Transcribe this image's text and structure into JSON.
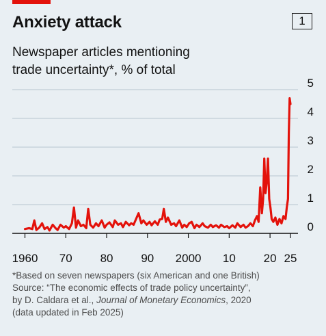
{
  "header": {
    "title": "Anxiety attack",
    "chart_number": "1",
    "subtitle_line1": "Newspaper articles mentioning",
    "subtitle_line2": "trade uncertainty*, % of total"
  },
  "footnotes": {
    "note": "*Based on seven newspapers (six American and one British)",
    "source_line1": "Source: “The economic effects of trade policy uncertainty”,",
    "source_line2_prefix": "by D. Caldara et al., ",
    "source_journal": "Journal of Monetary Economics",
    "source_line2_suffix": ", 2020",
    "source_line3": "(data updated in Feb 2025)"
  },
  "colors": {
    "background": "#e9eff3",
    "series": "#e3120b",
    "brand_tag": "#e3120b",
    "grid": "#b7c6cf",
    "baseline": "#121212"
  },
  "chart_data": {
    "type": "line",
    "title": "Anxiety attack",
    "subtitle": "Newspaper articles mentioning trade uncertainty*, % of total",
    "xlabel": "",
    "ylabel": "",
    "xlim": [
      1957,
      2027
    ],
    "ylim": [
      0,
      5
    ],
    "y_ticks": [
      0,
      1,
      2,
      3,
      4,
      5
    ],
    "y_axis_side": "right",
    "x_ticks": [
      {
        "value": 1960,
        "label": "1960"
      },
      {
        "value": 1970,
        "label": "70"
      },
      {
        "value": 1980,
        "label": "80"
      },
      {
        "value": 1990,
        "label": "90"
      },
      {
        "value": 2000,
        "label": "2000"
      },
      {
        "value": 2010,
        "label": "10"
      },
      {
        "value": 2020,
        "label": "20"
      },
      {
        "value": 2025,
        "label": "25"
      }
    ],
    "grid": true,
    "series": [
      {
        "name": "",
        "x": [
          1960.0,
          1961.0,
          1961.8,
          1962.3,
          1962.8,
          1963.5,
          1964.2,
          1964.8,
          1965.5,
          1966.0,
          1966.8,
          1967.5,
          1968.0,
          1968.7,
          1969.5,
          1970.0,
          1970.8,
          1971.5,
          1972.0,
          1972.5,
          1973.0,
          1973.7,
          1974.3,
          1975.0,
          1975.5,
          1976.0,
          1976.7,
          1977.4,
          1978.0,
          1978.8,
          1979.5,
          1980.0,
          1980.7,
          1981.5,
          1982.0,
          1982.8,
          1983.5,
          1984.0,
          1984.7,
          1985.5,
          1986.0,
          1986.6,
          1987.2,
          1987.8,
          1988.5,
          1989.0,
          1989.8,
          1990.5,
          1991.0,
          1991.8,
          1992.5,
          1993.0,
          1993.6,
          1994.0,
          1994.5,
          1995.0,
          1995.8,
          1996.5,
          1997.0,
          1997.8,
          1998.5,
          1999.0,
          1999.6,
          2000.2,
          2000.8,
          2001.5,
          2002.0,
          2002.7,
          2003.5,
          2004.0,
          2004.8,
          2005.5,
          2006.0,
          2006.8,
          2007.5,
          2008.0,
          2008.8,
          2009.5,
          2010.0,
          2010.8,
          2011.5,
          2012.0,
          2012.8,
          2013.5,
          2014.0,
          2014.6,
          2015.2,
          2015.8,
          2016.3,
          2016.8,
          2017.2,
          2017.6,
          2018.0,
          2018.3,
          2018.6,
          2018.9,
          2019.2,
          2019.5,
          2019.8,
          2020.1,
          2020.4,
          2020.8,
          2021.3,
          2021.8,
          2022.3,
          2022.8,
          2023.3,
          2023.8,
          2024.1,
          2024.4,
          2024.6,
          2024.8,
          2025.0
        ],
        "values": [
          0.15,
          0.18,
          0.15,
          0.45,
          0.12,
          0.2,
          0.35,
          0.15,
          0.22,
          0.1,
          0.3,
          0.18,
          0.12,
          0.3,
          0.2,
          0.25,
          0.15,
          0.35,
          0.9,
          0.2,
          0.45,
          0.25,
          0.3,
          0.18,
          0.85,
          0.3,
          0.2,
          0.35,
          0.25,
          0.45,
          0.2,
          0.3,
          0.38,
          0.22,
          0.45,
          0.3,
          0.35,
          0.22,
          0.4,
          0.28,
          0.35,
          0.3,
          0.5,
          0.7,
          0.35,
          0.45,
          0.3,
          0.4,
          0.28,
          0.42,
          0.3,
          0.48,
          0.5,
          0.85,
          0.4,
          0.55,
          0.3,
          0.35,
          0.25,
          0.45,
          0.2,
          0.3,
          0.22,
          0.35,
          0.4,
          0.18,
          0.3,
          0.22,
          0.35,
          0.25,
          0.2,
          0.3,
          0.22,
          0.28,
          0.2,
          0.3,
          0.22,
          0.25,
          0.18,
          0.28,
          0.2,
          0.35,
          0.22,
          0.3,
          0.2,
          0.25,
          0.35,
          0.25,
          0.45,
          0.6,
          0.4,
          1.6,
          0.7,
          1.2,
          2.6,
          1.4,
          1.8,
          2.6,
          1.2,
          0.9,
          0.5,
          0.4,
          0.55,
          0.3,
          0.5,
          0.35,
          0.6,
          0.5,
          0.9,
          1.2,
          3.5,
          4.7,
          4.5
        ]
      }
    ]
  }
}
